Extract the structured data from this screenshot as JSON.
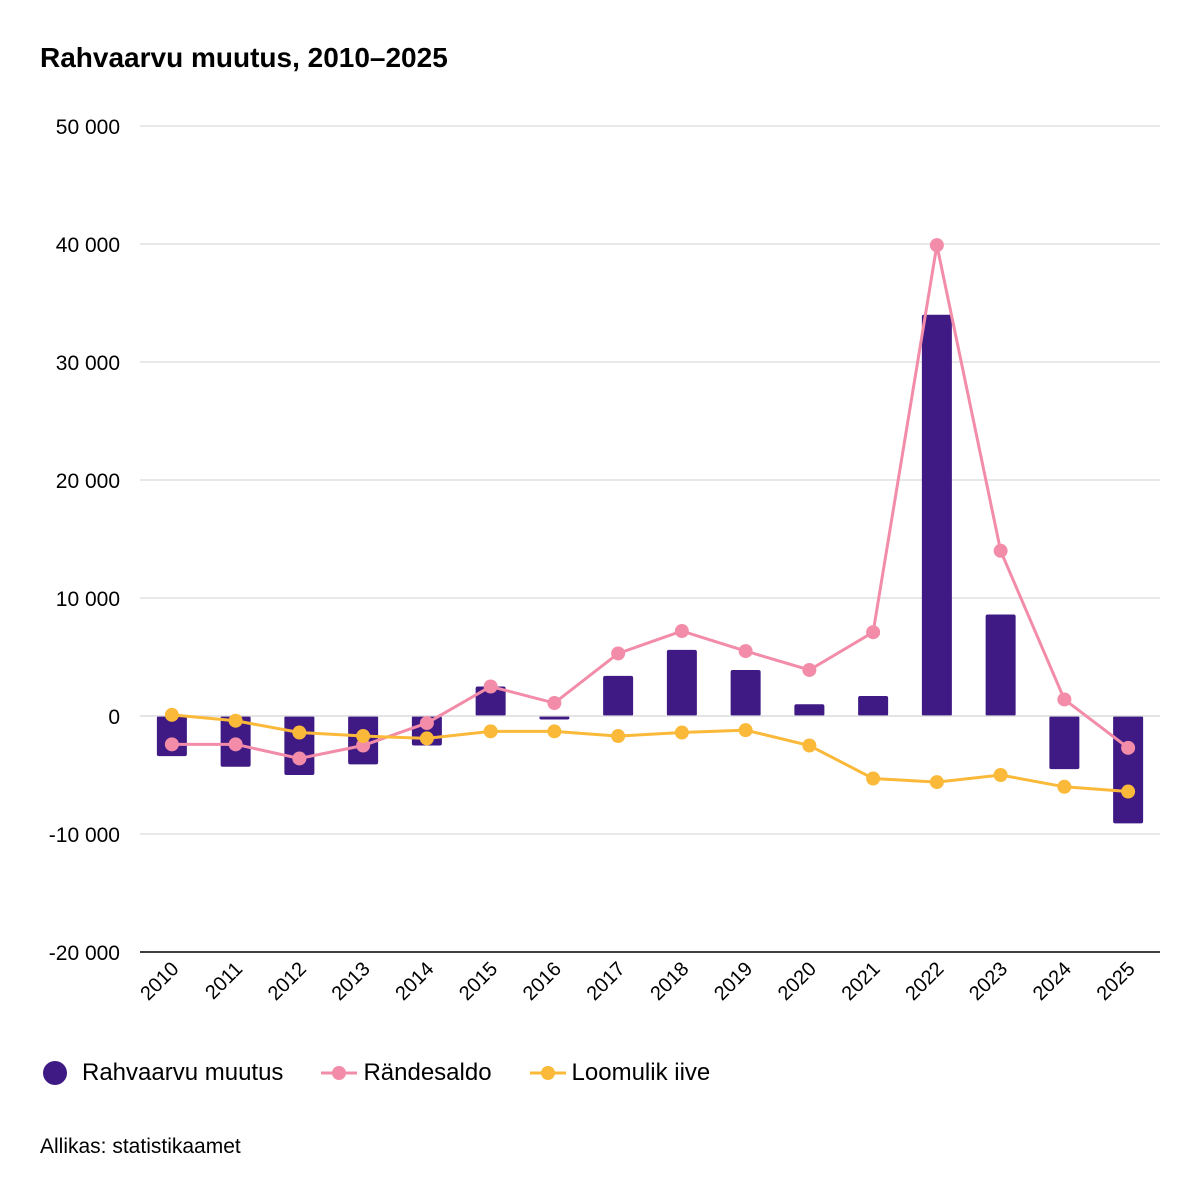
{
  "chart_data": {
    "type": "bar+line",
    "title": "Rahvaarvu muutus, 2010–2025",
    "source": "Allikas: statistikaamet",
    "categories": [
      "2010",
      "2011",
      "2012",
      "2013",
      "2014",
      "2015",
      "2016",
      "2017",
      "2018",
      "2019",
      "2020",
      "2021",
      "2022",
      "2023",
      "2024",
      "2025"
    ],
    "ylim": [
      -20000,
      50000
    ],
    "yticks": [
      50000,
      40000,
      30000,
      20000,
      10000,
      0,
      -10000,
      -20000
    ],
    "ytick_labels": [
      "50 000",
      "40 000",
      "30 000",
      "20 000",
      "10 000",
      "0",
      "-10 000",
      "-20 000"
    ],
    "grid": true,
    "legend_position": "bottom-left",
    "series": [
      {
        "name": "Rahvaarvu muutus",
        "type": "bar",
        "color": "#3f1a84",
        "values": [
          -3400,
          -4300,
          -5000,
          -4100,
          -2500,
          2500,
          -300,
          3400,
          5600,
          3900,
          1000,
          1700,
          34000,
          8600,
          -4500,
          -9100
        ]
      },
      {
        "name": "Rändesaldo",
        "type": "line",
        "color": "#f28ca8",
        "values": [
          -2400,
          -2400,
          -3600,
          -2500,
          -600,
          2500,
          1100,
          5300,
          7200,
          5500,
          3900,
          7100,
          39900,
          14000,
          1400,
          -2700
        ]
      },
      {
        "name": "Loomulik iive",
        "type": "line",
        "color": "#fbb93a",
        "values": [
          100,
          -400,
          -1400,
          -1700,
          -1900,
          -1300,
          -1300,
          -1700,
          -1400,
          -1200,
          -2500,
          -5300,
          -5600,
          -5000,
          -6000,
          -6400
        ]
      }
    ]
  }
}
